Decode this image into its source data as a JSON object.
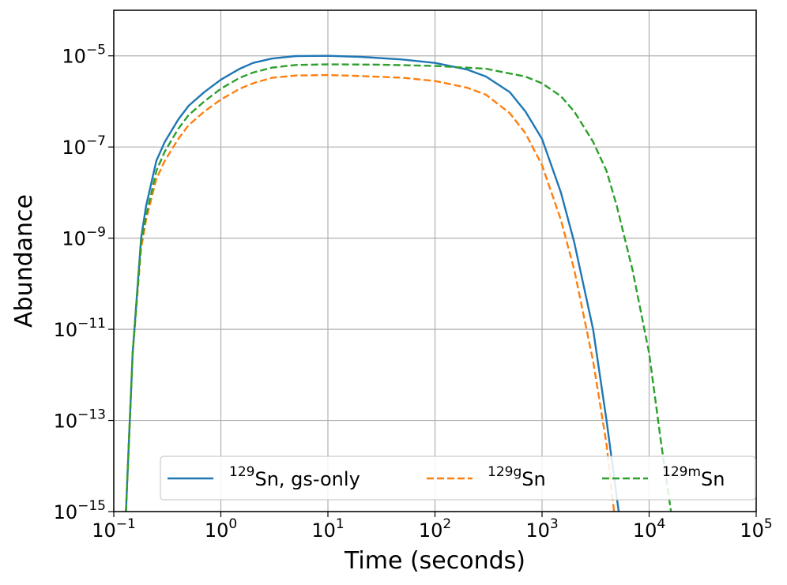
{
  "chart_data": {
    "type": "line",
    "xlabel": "Time (seconds)",
    "ylabel": "Abundance",
    "xscale": "log",
    "yscale": "log",
    "xlim": [
      0.1,
      100000
    ],
    "ylim": [
      1e-15,
      0.0001
    ],
    "grid": true,
    "legend_position": "bottom",
    "x_ticks": [
      {
        "value": 0.1,
        "base": "10",
        "exp": "−1"
      },
      {
        "value": 1,
        "base": "10",
        "exp": "0"
      },
      {
        "value": 10,
        "base": "10",
        "exp": "1"
      },
      {
        "value": 100,
        "base": "10",
        "exp": "2"
      },
      {
        "value": 1000,
        "base": "10",
        "exp": "3"
      },
      {
        "value": 10000,
        "base": "10",
        "exp": "4"
      },
      {
        "value": 100000,
        "base": "10",
        "exp": "5"
      }
    ],
    "y_ticks": [
      {
        "value": 1e-15,
        "base": "10",
        "exp": "−15"
      },
      {
        "value": 1e-13,
        "base": "10",
        "exp": "−13"
      },
      {
        "value": 1e-11,
        "base": "10",
        "exp": "−11"
      },
      {
        "value": 1e-09,
        "base": "10",
        "exp": "−9"
      },
      {
        "value": 1e-07,
        "base": "10",
        "exp": "−7"
      },
      {
        "value": 1e-05,
        "base": "10",
        "exp": "−5"
      }
    ],
    "series": [
      {
        "name": "129Sn, gs-only",
        "name_sup": "129",
        "name_main": "Sn, gs-only",
        "color": "#1f77b4",
        "dash": "solid",
        "points": [
          [
            0.13,
            1e-15
          ],
          [
            0.15,
            3e-12
          ],
          [
            0.18,
            1e-09
          ],
          [
            0.2,
            5e-09
          ],
          [
            0.25,
            5e-08
          ],
          [
            0.3,
            1.3e-07
          ],
          [
            0.4,
            4e-07
          ],
          [
            0.5,
            8e-07
          ],
          [
            0.7,
            1.6e-06
          ],
          [
            1,
            3e-06
          ],
          [
            1.5,
            5.2e-06
          ],
          [
            2,
            7e-06
          ],
          [
            3,
            8.7e-06
          ],
          [
            5,
            9.9e-06
          ],
          [
            10,
            1e-05
          ],
          [
            20,
            9.5e-06
          ],
          [
            50,
            8.3e-06
          ],
          [
            100,
            7e-06
          ],
          [
            200,
            5e-06
          ],
          [
            300,
            3.5e-06
          ],
          [
            500,
            1.6e-06
          ],
          [
            700,
            6e-07
          ],
          [
            1000,
            1.5e-07
          ],
          [
            1500,
            1e-08
          ],
          [
            2000,
            8e-10
          ],
          [
            3000,
            1e-11
          ],
          [
            4000,
            1e-13
          ],
          [
            5000,
            2e-15
          ],
          [
            5200,
            1e-15
          ]
        ]
      },
      {
        "name": "129gSn",
        "name_sup": "129g",
        "name_main": "Sn",
        "color": "#ff7f0e",
        "dash": "dashed",
        "points": [
          [
            0.13,
            1e-15
          ],
          [
            0.15,
            3e-12
          ],
          [
            0.18,
            6e-10
          ],
          [
            0.2,
            2.5e-09
          ],
          [
            0.25,
            2e-08
          ],
          [
            0.3,
            5e-08
          ],
          [
            0.4,
            1.5e-07
          ],
          [
            0.5,
            3e-07
          ],
          [
            0.7,
            6e-07
          ],
          [
            1,
            1.1e-06
          ],
          [
            1.5,
            1.9e-06
          ],
          [
            2,
            2.5e-06
          ],
          [
            3,
            3.3e-06
          ],
          [
            5,
            3.7e-06
          ],
          [
            10,
            3.8e-06
          ],
          [
            20,
            3.6e-06
          ],
          [
            50,
            3.3e-06
          ],
          [
            100,
            2.8e-06
          ],
          [
            200,
            2e-06
          ],
          [
            300,
            1.4e-06
          ],
          [
            500,
            5.5e-07
          ],
          [
            700,
            2e-07
          ],
          [
            1000,
            4e-08
          ],
          [
            1500,
            2.5e-09
          ],
          [
            2000,
            2e-10
          ],
          [
            3000,
            2e-12
          ],
          [
            4000,
            3e-14
          ],
          [
            4700,
            1e-15
          ]
        ]
      },
      {
        "name": "129mSn",
        "name_sup": "129m",
        "name_main": "Sn",
        "color": "#2ca02c",
        "dash": "dashed",
        "points": [
          [
            0.13,
            1e-15
          ],
          [
            0.15,
            3e-12
          ],
          [
            0.18,
            8e-10
          ],
          [
            0.2,
            3e-09
          ],
          [
            0.25,
            3e-08
          ],
          [
            0.3,
            8e-08
          ],
          [
            0.4,
            2.5e-07
          ],
          [
            0.5,
            5e-07
          ],
          [
            0.7,
            1e-06
          ],
          [
            1,
            1.9e-06
          ],
          [
            1.5,
            3.3e-06
          ],
          [
            2,
            4.3e-06
          ],
          [
            3,
            5.5e-06
          ],
          [
            5,
            6.3e-06
          ],
          [
            10,
            6.5e-06
          ],
          [
            30,
            6.4e-06
          ],
          [
            100,
            6e-06
          ],
          [
            300,
            5.2e-06
          ],
          [
            700,
            3.5e-06
          ],
          [
            1000,
            2.5e-06
          ],
          [
            1500,
            1.3e-06
          ],
          [
            2000,
            6e-07
          ],
          [
            3000,
            1.3e-07
          ],
          [
            4000,
            3e-08
          ],
          [
            5000,
            5e-09
          ],
          [
            7000,
            2e-10
          ],
          [
            10000,
            3e-12
          ],
          [
            13000,
            3e-14
          ],
          [
            16000,
            1e-15
          ]
        ]
      }
    ]
  }
}
